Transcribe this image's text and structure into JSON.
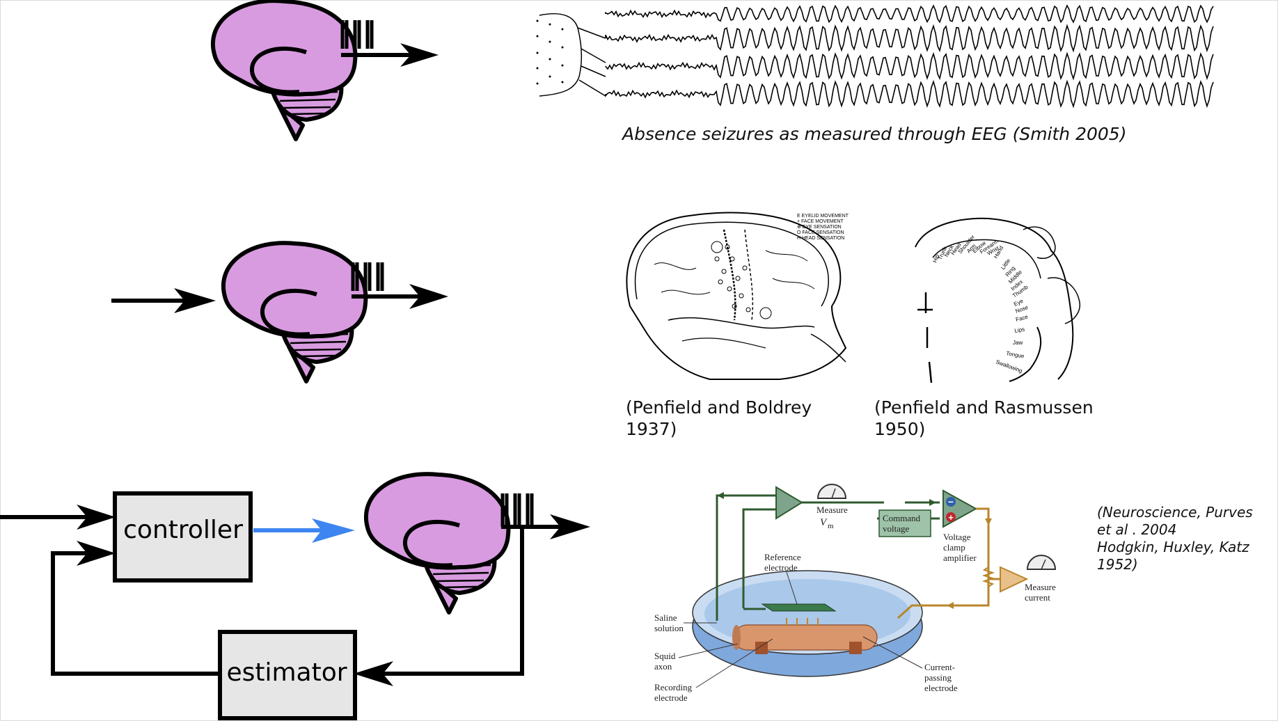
{
  "captions": {
    "eeg": "Absence seizures as measured through EEG (Smith 2005)",
    "penfield_boldrey": [
      "(Penfield and Boldrey",
      "1937)"
    ],
    "penfield_rasmussen": [
      "(Penfield and Rasmussen",
      "1950)"
    ],
    "neuroscience": [
      "(Neuroscience, Purves",
      "et al . 2004",
      "Hodgkin, Huxley, Katz",
      "1952)"
    ]
  },
  "diagram": {
    "controller_label": "controller",
    "estimator_label": "estimator"
  },
  "penfield_map_legend": [
    "E  EYELID MOVEMENT",
    "+  FACE MOVEMENT",
    "⊕  EYE SENSATION",
    "O  FACE SENSATION",
    "H  HEAD SENSATION"
  ],
  "homunculus_labels": [
    "Hip",
    "Trunk",
    "Neck",
    "Head",
    "Shoulder",
    "Arm",
    "Elbow",
    "Forearm",
    "Wrist",
    "Hand",
    "Little",
    "Ring",
    "Middle",
    "Index",
    "Thumb",
    "Eye",
    "Nose",
    "Face",
    "Lips",
    "Jaw",
    "Tongue",
    "Swallowing"
  ],
  "voltage_clamp": {
    "measure_vm": "Measure",
    "vm_symbol": "V",
    "vm_sub": "m",
    "command_voltage": [
      "Command",
      "voltage"
    ],
    "amplifier": [
      "Voltage",
      "clamp",
      "amplifier"
    ],
    "measure_current": [
      "Measure",
      "current"
    ],
    "reference_electrode": [
      "Reference",
      "electrode"
    ],
    "saline": [
      "Saline",
      "solution"
    ],
    "squid": [
      "Squid",
      "axon"
    ],
    "recording": [
      "Recording",
      "electrode"
    ],
    "current_passing": [
      "Current-",
      "passing",
      "electrode"
    ],
    "minus": "−",
    "plus": "+"
  },
  "colors": {
    "brain": "#d89be0",
    "cerebellum": "#d89be0",
    "box_fill": "#e6e6e6",
    "blue_arrow": "#3d85f0",
    "green_wire": "#2f5a2f",
    "gold_wire": "#b8862b",
    "dish": "#aac8ea",
    "axon": "#d9956b"
  }
}
